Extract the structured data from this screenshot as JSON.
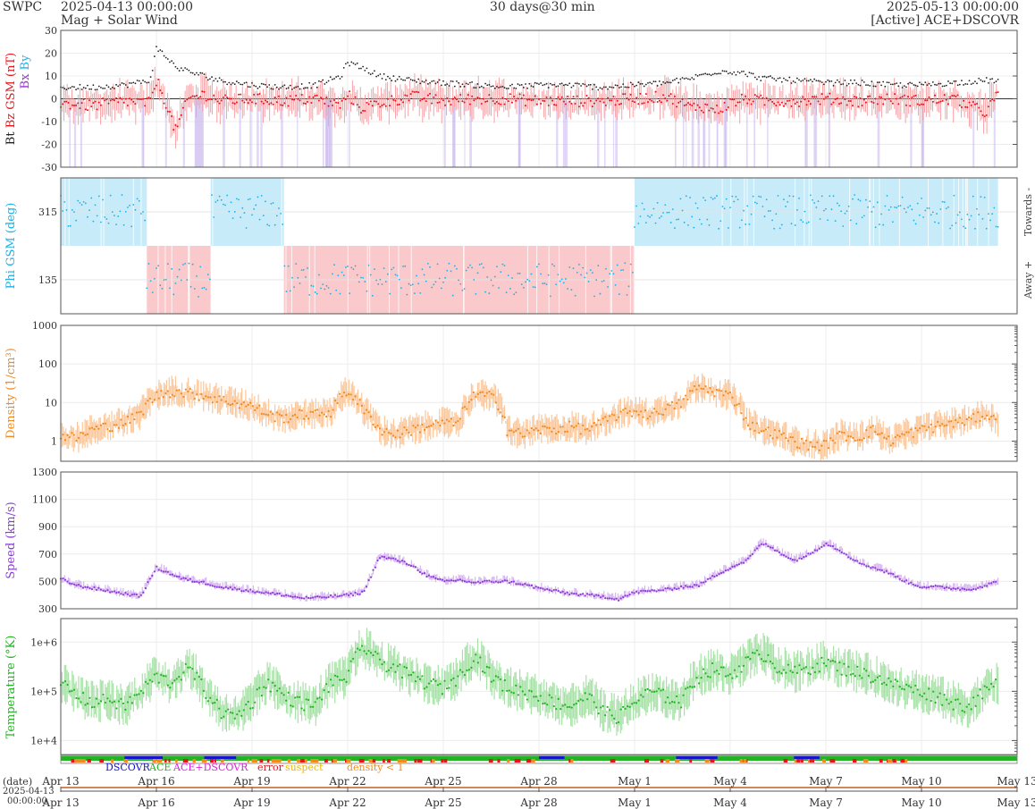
{
  "header": {
    "org": "SWPC",
    "start_time": "2025-04-13 00:00:00",
    "product": "Mag + Solar Wind",
    "span": "30 days@30 min",
    "end_time": "2025-05-13 00:00:00",
    "source": "[Active] ACE+DSCOVR"
  },
  "colors": {
    "bt": "#222222",
    "bz": "#e8141b",
    "bz_fill": "#f5a3a6",
    "bx": "#9b2fd6",
    "by": "#1ab2e8",
    "phi_toward_bg": "#c7ebf8",
    "phi_away_bg": "#f9c9cb",
    "density": "#f28a1e",
    "density_fill": "#fbc79a",
    "speed": "#8c3bd6",
    "speed_fill": "#d7b4f2",
    "temperature": "#24b324",
    "temperature_fill": "#a6e2a6",
    "dscovr": "#1414c8",
    "ace": "#24b324",
    "ace_dscovr": "#e020e0",
    "error": "#e8141b",
    "suspect": "#e6b800",
    "density_lt1": "#f28a1e"
  },
  "chart_data": [
    {
      "type": "line",
      "panel": "mag",
      "ylabel_parts": [
        "Bt",
        "Bz GSM (nT)",
        "Bx",
        "By"
      ],
      "ylim": [
        -30,
        30
      ],
      "yticks": [
        "30",
        "20",
        "10",
        "0",
        "-10",
        "-20",
        "-30"
      ],
      "x_days": [
        0,
        1,
        2,
        2.8,
        3,
        3.2,
        3.6,
        4,
        4.5,
        5,
        6,
        7,
        8,
        8.8,
        9,
        9.4,
        10,
        11,
        12,
        13,
        14,
        15,
        16,
        17,
        18,
        19,
        19.8,
        20,
        20.6,
        21,
        21.5,
        22,
        23,
        24,
        25,
        26,
        27,
        28,
        29,
        29.4
      ],
      "series": [
        {
          "name": "Bt",
          "values": [
            5,
            5,
            6,
            8,
            22,
            20,
            14,
            12,
            10,
            8,
            6,
            5,
            6,
            10,
            16,
            14,
            10,
            8,
            7,
            6,
            5,
            6,
            6,
            5,
            6,
            7,
            9,
            10,
            12,
            12,
            11,
            9,
            8,
            7,
            7,
            6,
            6,
            7,
            8,
            8
          ]
        },
        {
          "name": "Bz GSM",
          "values": [
            -2,
            -3,
            -1,
            -2,
            8,
            2,
            -14,
            0,
            2,
            -1,
            0,
            -1,
            0,
            -3,
            2,
            -4,
            -2,
            1,
            -1,
            0,
            0,
            -1,
            -1,
            -1,
            0,
            1,
            -4,
            -3,
            -5,
            -2,
            0,
            -1,
            -1,
            0,
            -1,
            0,
            -1,
            0,
            -6,
            2
          ]
        }
      ],
      "shading": "purple negative-Bz intervals"
    },
    {
      "type": "scatter",
      "panel": "phi",
      "ylabel": "Phi GSM (deg)",
      "right_labels": [
        "Towards -",
        "Away +"
      ],
      "ylim": [
        45,
        405
      ],
      "yticks": [
        "315",
        "135"
      ],
      "sectors_days": [
        {
          "from": 0,
          "to": 2.7,
          "sector": "toward"
        },
        {
          "from": 2.7,
          "to": 4.7,
          "sector": "away"
        },
        {
          "from": 4.7,
          "to": 7.0,
          "sector": "toward"
        },
        {
          "from": 7.0,
          "to": 18.0,
          "sector": "away"
        },
        {
          "from": 18.0,
          "to": 29.4,
          "sector": "toward"
        }
      ]
    },
    {
      "type": "line",
      "panel": "density",
      "ylabel": "Density (1/cm³)",
      "scale": "log",
      "ylim": [
        0.3,
        1000
      ],
      "yticks": [
        "1000",
        "100",
        "10",
        "1"
      ],
      "x_days": [
        0,
        0.5,
        1,
        1.5,
        2,
        2.5,
        3,
        3.5,
        4,
        4.5,
        5,
        5.5,
        6,
        6.5,
        7,
        7.5,
        8,
        8.5,
        9,
        9.5,
        10,
        10.5,
        11,
        11.5,
        12,
        12.5,
        13,
        13.5,
        14,
        14.5,
        15,
        15.5,
        16,
        16.5,
        17,
        17.5,
        18,
        18.5,
        19,
        19.5,
        20,
        20.5,
        21,
        21.5,
        22,
        22.5,
        23,
        23.5,
        24,
        24.5,
        25,
        25.5,
        26,
        26.5,
        27,
        27.5,
        28,
        28.5,
        29,
        29.4
      ],
      "values": [
        1.5,
        1.2,
        2,
        2.5,
        3,
        5,
        15,
        20,
        18,
        15,
        12,
        10,
        8,
        5,
        4,
        5,
        5,
        6,
        20,
        6,
        2,
        1.5,
        2,
        2.5,
        3,
        3,
        16,
        15,
        2,
        1.5,
        2,
        2,
        2.5,
        2,
        3,
        5,
        6,
        5,
        7,
        10,
        25,
        20,
        15,
        3,
        2,
        1.5,
        1,
        0.8,
        0.8,
        1.5,
        1.2,
        2,
        1,
        1.5,
        2,
        2.5,
        3,
        3.5,
        5,
        3
      ]
    },
    {
      "type": "line",
      "panel": "speed",
      "ylabel": "Speed (km/s)",
      "ylim": [
        300,
        1300
      ],
      "yticks": [
        "1300",
        "1100",
        "900",
        "700",
        "500",
        "300"
      ],
      "x_days": [
        0,
        0.5,
        1,
        1.5,
        2,
        2.5,
        3,
        3.3,
        3.8,
        4.5,
        5,
        6,
        7,
        7.5,
        8,
        8.5,
        9,
        9.5,
        10,
        10.5,
        11,
        11.5,
        12,
        12.5,
        13,
        13.5,
        14,
        14.5,
        15,
        16,
        17,
        17.5,
        18,
        18.5,
        19,
        19.5,
        20,
        20.5,
        21,
        21.5,
        22,
        22.5,
        23,
        23.5,
        24,
        24.5,
        25,
        25.5,
        26,
        26.5,
        27,
        27.5,
        28,
        28.5,
        29,
        29.4
      ],
      "values": [
        520,
        470,
        450,
        430,
        410,
        390,
        600,
        570,
        520,
        490,
        460,
        430,
        400,
        380,
        380,
        390,
        400,
        420,
        680,
        660,
        620,
        540,
        500,
        510,
        490,
        500,
        500,
        480,
        450,
        410,
        390,
        370,
        420,
        430,
        440,
        460,
        470,
        540,
        600,
        650,
        780,
        720,
        650,
        700,
        780,
        720,
        640,
        600,
        560,
        500,
        460,
        460,
        450,
        440,
        470,
        500
      ]
    },
    {
      "type": "line",
      "panel": "temperature",
      "ylabel": "Temperature (°K)",
      "scale": "log",
      "ylim": [
        5000,
        3000000
      ],
      "yticks": [
        "1e+6",
        "1e+5",
        "1e+4"
      ],
      "x_days": [
        0,
        0.5,
        1,
        1.5,
        2,
        2.5,
        3,
        3.5,
        4,
        4.5,
        5,
        5.5,
        6,
        6.5,
        7,
        7.5,
        8,
        8.5,
        9,
        9.5,
        10,
        10.5,
        11,
        11.5,
        12,
        12.5,
        13,
        13.5,
        14,
        14.5,
        15,
        15.5,
        16,
        16.5,
        17,
        17.5,
        18,
        18.5,
        19,
        19.5,
        20,
        20.5,
        21,
        21.5,
        22,
        22.5,
        23,
        23.5,
        24,
        24.5,
        25,
        25.5,
        26,
        26.5,
        27,
        27.5,
        28,
        28.5,
        29,
        29.4
      ],
      "values": [
        150000,
        80000,
        60000,
        70000,
        50000,
        90000,
        200000,
        150000,
        300000,
        100000,
        40000,
        30000,
        60000,
        150000,
        80000,
        60000,
        50000,
        150000,
        200000,
        800000,
        400000,
        300000,
        200000,
        150000,
        120000,
        200000,
        500000,
        200000,
        120000,
        100000,
        80000,
        60000,
        50000,
        80000,
        40000,
        30000,
        60000,
        100000,
        80000,
        60000,
        200000,
        300000,
        200000,
        400000,
        600000,
        300000,
        250000,
        300000,
        400000,
        300000,
        250000,
        200000,
        150000,
        120000,
        100000,
        80000,
        60000,
        50000,
        100000,
        150000
      ]
    }
  ],
  "legend": {
    "dscovr": "DSCOVR",
    "ace": "ACE",
    "ace_dscovr": "ACE+DSCOVR",
    "error": "error",
    "suspect": "suspect",
    "density_lt1": "density < 1"
  },
  "xaxis": {
    "tick_labels": [
      "Apr 13",
      "Apr 16",
      "Apr 19",
      "Apr 22",
      "Apr 25",
      "Apr 28",
      "May 1",
      "May 4",
      "May 7",
      "May 10",
      "May 13"
    ],
    "date_label": "(date)",
    "bottom_date": "2025-04-13",
    "bottom_time": "00:00:00",
    "range_days": [
      0,
      30
    ]
  }
}
